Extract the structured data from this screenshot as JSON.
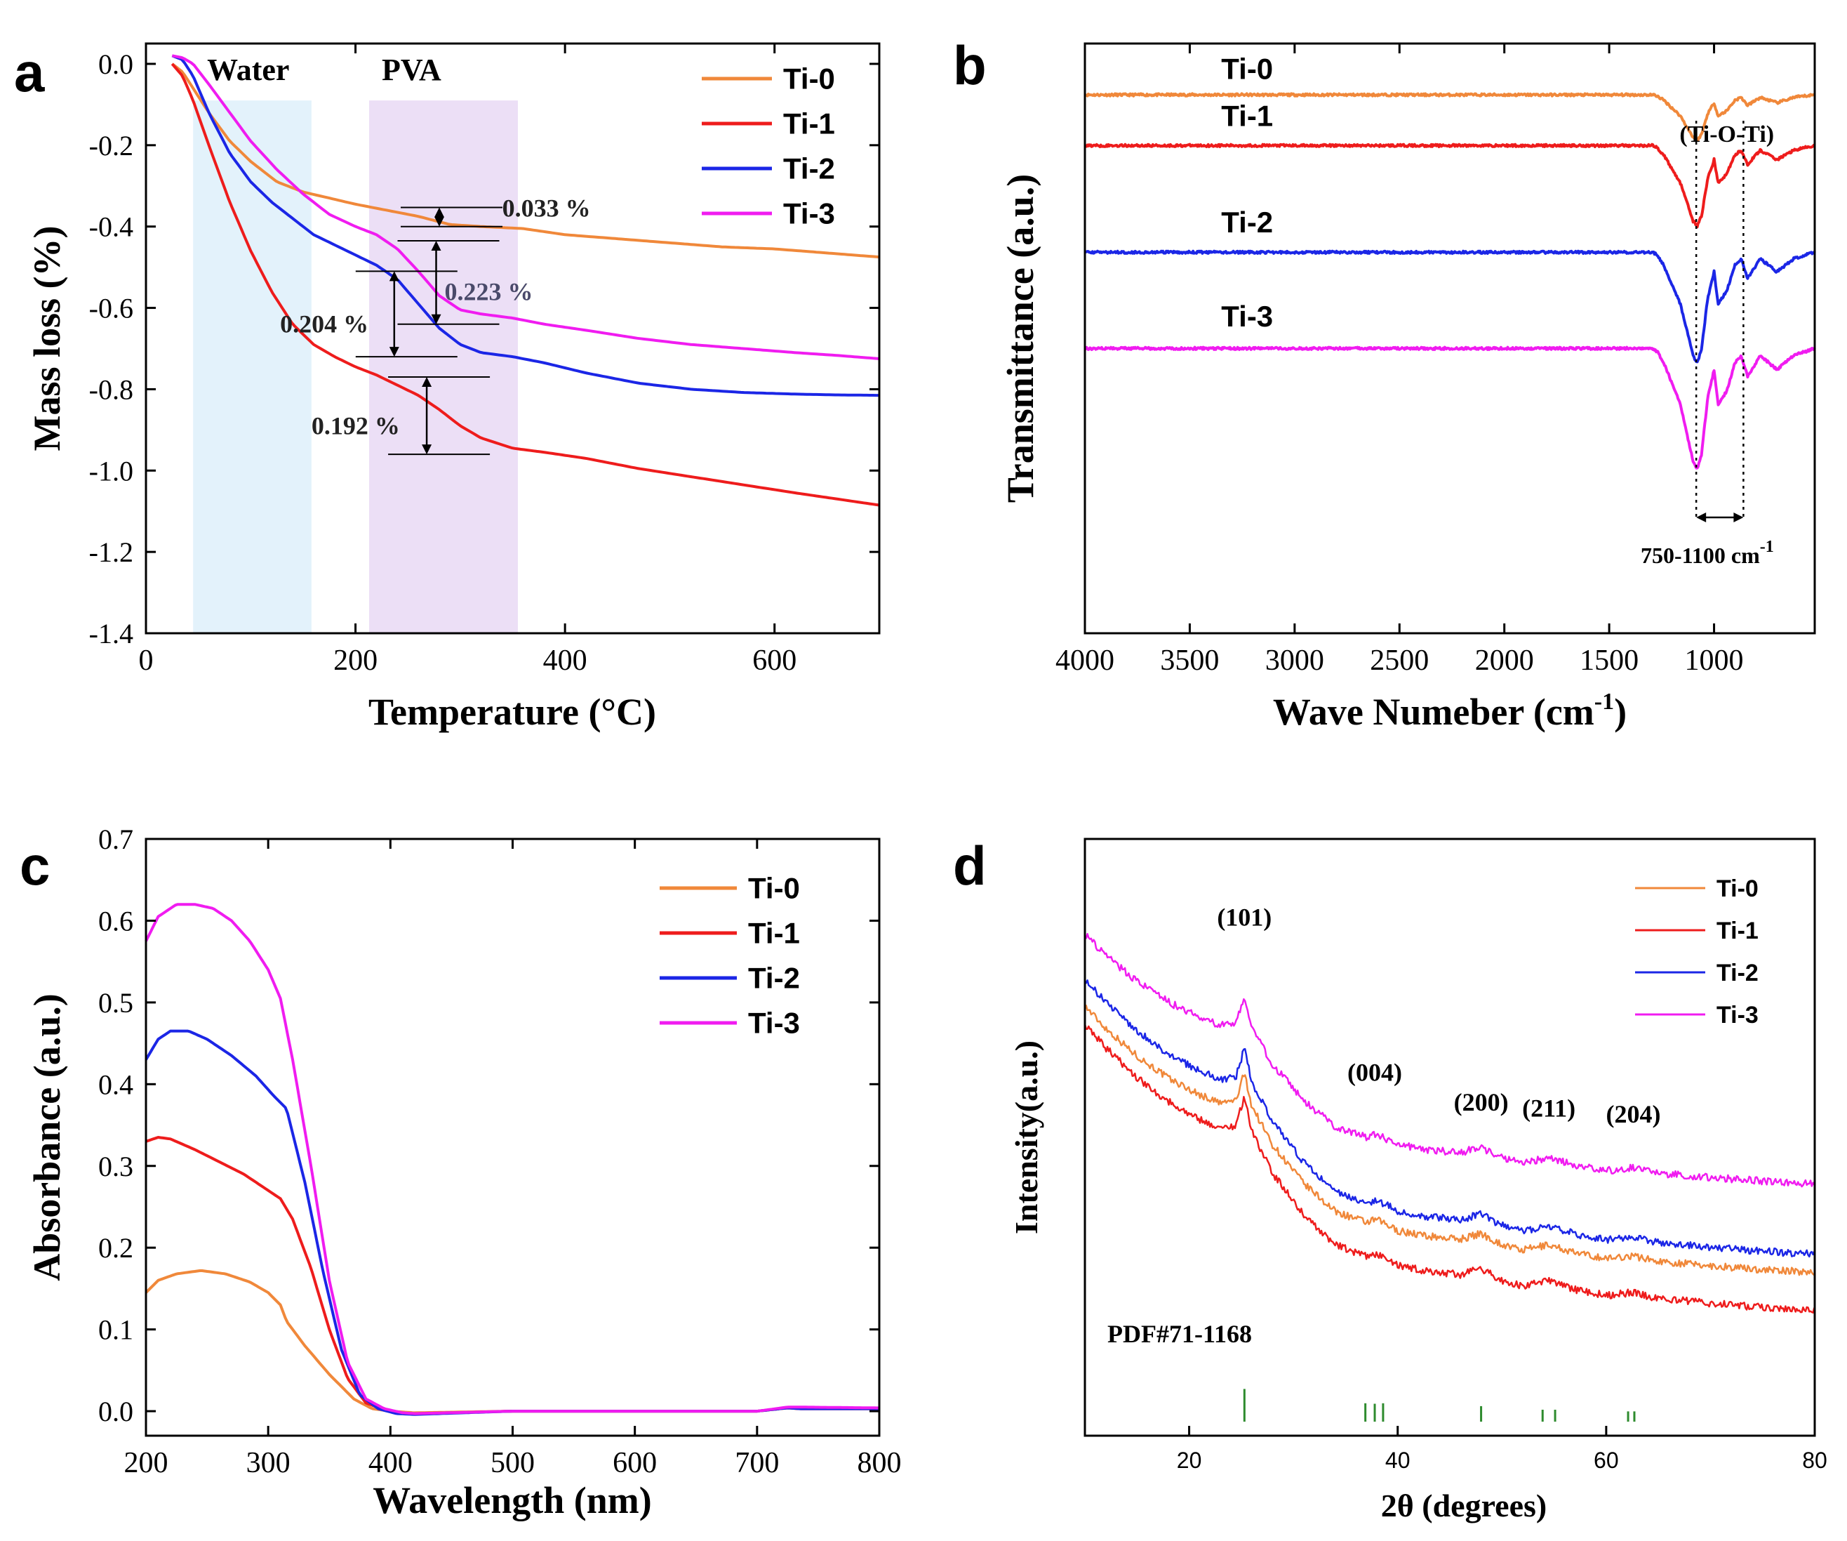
{
  "figure": {
    "panel_labels": [
      "a",
      "b",
      "c",
      "d"
    ]
  },
  "colors": {
    "Ti-0": "#F0883A",
    "Ti-1": "#EE1C1C",
    "Ti-2": "#1B26E6",
    "Ti-3": "#F01CF0",
    "water_band": "#E3F2FB",
    "pva_band": "#ECDFF6",
    "ref_bars": "#2E8B2E"
  },
  "chart_data": [
    {
      "panel": "a",
      "type": "line",
      "xlabel": "Temperature (°C)",
      "ylabel": "Mass loss (%)",
      "xlim": [
        0,
        700
      ],
      "ylim": [
        -1.4,
        0.05
      ],
      "xticks": [
        0,
        200,
        400,
        600
      ],
      "yticks": [
        0.0,
        -0.2,
        -0.4,
        -0.6,
        -0.8,
        -1.0,
        -1.2,
        -1.4
      ],
      "ytick_labels": [
        "0.0",
        "-0.2",
        "-0.4",
        "-0.6",
        "-0.8",
        "-1.0",
        "-1.2",
        "-1.4"
      ],
      "bands": [
        {
          "label": "Water",
          "x0": 45,
          "x1": 158
        },
        {
          "label": "PVA",
          "x0": 213,
          "x1": 355
        }
      ],
      "annotations": [
        {
          "text": "0.033 %",
          "x": 280,
          "y1": -0.353,
          "y2": -0.4,
          "tx": 340,
          "ty": -0.355
        },
        {
          "text": "0.223 %",
          "x": 277,
          "y1": -0.435,
          "y2": -0.64,
          "tx": 285,
          "ty": -0.56
        },
        {
          "text": "0.204 %",
          "x": 237,
          "y1": -0.51,
          "y2": -0.72,
          "tx": 128,
          "ty": -0.64
        },
        {
          "text": "0.192 %",
          "x": 268,
          "y1": -0.77,
          "y2": -0.96,
          "tx": 158,
          "ty": -0.89
        }
      ],
      "series": [
        {
          "name": "Ti-0",
          "x": [
            25,
            35,
            45,
            60,
            80,
            100,
            125,
            150,
            175,
            200,
            230,
            260,
            290,
            320,
            360,
            400,
            450,
            500,
            550,
            600,
            650,
            700
          ],
          "y": [
            0.0,
            -0.02,
            -0.06,
            -0.12,
            -0.19,
            -0.24,
            -0.29,
            -0.315,
            -0.33,
            -0.345,
            -0.36,
            -0.375,
            -0.395,
            -0.4,
            -0.405,
            -0.42,
            -0.43,
            -0.44,
            -0.45,
            -0.455,
            -0.465,
            -0.475
          ]
        },
        {
          "name": "Ti-1",
          "x": [
            25,
            35,
            45,
            60,
            80,
            100,
            120,
            140,
            160,
            180,
            200,
            220,
            240,
            260,
            280,
            300,
            320,
            350,
            380,
            420,
            470,
            520,
            570,
            620,
            660,
            700
          ],
          "y": [
            0.0,
            -0.03,
            -0.09,
            -0.2,
            -0.34,
            -0.46,
            -0.56,
            -0.64,
            -0.69,
            -0.72,
            -0.745,
            -0.765,
            -0.79,
            -0.815,
            -0.85,
            -0.89,
            -0.92,
            -0.945,
            -0.955,
            -0.97,
            -0.995,
            -1.015,
            -1.035,
            -1.055,
            -1.07,
            -1.085
          ]
        },
        {
          "name": "Ti-2",
          "x": [
            25,
            35,
            45,
            60,
            80,
            100,
            120,
            140,
            160,
            180,
            200,
            220,
            240,
            260,
            280,
            300,
            320,
            350,
            380,
            420,
            470,
            520,
            570,
            620,
            660,
            700
          ],
          "y": [
            0.02,
            0.01,
            -0.03,
            -0.12,
            -0.22,
            -0.29,
            -0.34,
            -0.38,
            -0.42,
            -0.445,
            -0.47,
            -0.495,
            -0.53,
            -0.59,
            -0.65,
            -0.69,
            -0.71,
            -0.72,
            -0.735,
            -0.76,
            -0.785,
            -0.8,
            -0.808,
            -0.812,
            -0.814,
            -0.815
          ]
        },
        {
          "name": "Ti-3",
          "x": [
            25,
            35,
            45,
            60,
            80,
            100,
            125,
            150,
            175,
            200,
            220,
            240,
            260,
            280,
            300,
            320,
            350,
            380,
            420,
            470,
            520,
            570,
            620,
            660,
            700
          ],
          "y": [
            0.02,
            0.015,
            0.0,
            -0.05,
            -0.12,
            -0.19,
            -0.26,
            -0.32,
            -0.37,
            -0.4,
            -0.42,
            -0.455,
            -0.51,
            -0.57,
            -0.605,
            -0.615,
            -0.625,
            -0.64,
            -0.655,
            -0.675,
            -0.69,
            -0.7,
            -0.71,
            -0.717,
            -0.725
          ]
        }
      ]
    },
    {
      "panel": "b",
      "type": "line",
      "xlabel": "Wave Numeber (cm",
      "xlabel_sup": "-1",
      "xlabel_tail": ")",
      "ylabel": "Transmittance (a.u.)",
      "xlim": [
        4000,
        520
      ],
      "ylim": [
        0,
        1
      ],
      "xticks": [
        4000,
        3500,
        3000,
        2500,
        2000,
        1500,
        1000
      ],
      "labels": [
        "Ti-0",
        "Ti-1",
        "Ti-2",
        "Ti-3"
      ],
      "label_positions": [
        {
          "x": 3350,
          "y": 0.94
        },
        {
          "x": 3350,
          "y": 0.86
        },
        {
          "x": 3350,
          "y": 0.68
        },
        {
          "x": 3350,
          "y": 0.52
        }
      ],
      "annotation_top": "(Ti-O-Ti)",
      "annotation_bottom": "750-1100 cm",
      "annotation_bottom_sup": "-1",
      "dotted_lines_x": [
        1085,
        860
      ],
      "series": [
        {
          "name": "Ti-0",
          "baseline": 0.913,
          "dip_scale": 0.45
        },
        {
          "name": "Ti-1",
          "baseline": 0.827,
          "dip_scale": 0.8
        },
        {
          "name": "Ti-2",
          "baseline": 0.646,
          "dip_scale": 1.1
        },
        {
          "name": "Ti-3",
          "baseline": 0.483,
          "dip_scale": 1.2
        }
      ],
      "peak_profile": {
        "x": [
          520,
          620,
          700,
          780,
          840,
          870,
          900,
          940,
          980,
          1000,
          1030,
          1060,
          1080,
          1100,
          1130,
          1160,
          1200,
          1240,
          1270,
          1290,
          1320,
          4000
        ],
        "dy": [
          0.0,
          -0.01,
          -0.03,
          -0.01,
          -0.04,
          -0.01,
          -0.02,
          -0.06,
          -0.08,
          -0.03,
          -0.07,
          -0.15,
          -0.17,
          -0.16,
          -0.12,
          -0.08,
          -0.05,
          -0.02,
          -0.005,
          0.0,
          0.0,
          0.0
        ]
      }
    },
    {
      "panel": "c",
      "type": "line",
      "xlabel": "Wavelength (nm)",
      "ylabel": "Absorbance (a.u.)",
      "xlim": [
        200,
        800
      ],
      "ylim": [
        -0.03,
        0.7
      ],
      "xticks": [
        200,
        300,
        400,
        500,
        600,
        700,
        800
      ],
      "yticks": [
        0.0,
        0.1,
        0.2,
        0.3,
        0.4,
        0.5,
        0.6,
        0.7
      ],
      "ytick_labels": [
        "0.0",
        "0.1",
        "0.2",
        "0.3",
        "0.4",
        "0.5",
        "0.6",
        "0.7"
      ],
      "series": [
        {
          "name": "Ti-0",
          "x": [
            200,
            210,
            225,
            245,
            265,
            285,
            300,
            310,
            315,
            330,
            350,
            370,
            385,
            400,
            420,
            500,
            600,
            700,
            725,
            735,
            800
          ],
          "y": [
            0.145,
            0.16,
            0.168,
            0.172,
            0.168,
            0.158,
            0.145,
            0.13,
            0.11,
            0.08,
            0.045,
            0.015,
            0.003,
            0.0,
            -0.002,
            0.0,
            0.0,
            0.0,
            0.004,
            0.003,
            0.003
          ]
        },
        {
          "name": "Ti-1",
          "x": [
            200,
            210,
            220,
            240,
            260,
            280,
            300,
            310,
            320,
            335,
            350,
            365,
            380,
            395,
            410,
            420,
            500,
            600,
            700,
            725,
            735,
            800
          ],
          "y": [
            0.33,
            0.335,
            0.333,
            0.32,
            0.305,
            0.29,
            0.27,
            0.26,
            0.235,
            0.175,
            0.1,
            0.04,
            0.01,
            0.002,
            -0.003,
            -0.003,
            0.0,
            0.0,
            0.0,
            0.004,
            0.003,
            0.003
          ]
        },
        {
          "name": "Ti-2",
          "x": [
            200,
            210,
            220,
            235,
            250,
            270,
            290,
            305,
            315,
            330,
            345,
            360,
            375,
            390,
            405,
            420,
            500,
            600,
            700,
            725,
            735,
            800
          ],
          "y": [
            0.43,
            0.455,
            0.465,
            0.465,
            0.455,
            0.435,
            0.41,
            0.385,
            0.37,
            0.28,
            0.17,
            0.075,
            0.02,
            0.003,
            -0.003,
            -0.004,
            0.0,
            0.0,
            0.0,
            0.004,
            0.003,
            0.003
          ]
        },
        {
          "name": "Ti-3",
          "x": [
            200,
            210,
            225,
            240,
            255,
            270,
            285,
            300,
            310,
            320,
            335,
            350,
            365,
            380,
            395,
            410,
            420,
            500,
            600,
            700,
            725,
            735,
            800
          ],
          "y": [
            0.575,
            0.605,
            0.62,
            0.62,
            0.615,
            0.6,
            0.575,
            0.54,
            0.505,
            0.43,
            0.3,
            0.16,
            0.06,
            0.015,
            0.003,
            -0.002,
            -0.003,
            0.0,
            0.0,
            0.0,
            0.005,
            0.005,
            0.004
          ]
        }
      ]
    },
    {
      "panel": "d",
      "type": "line",
      "xlabel": "2θ (degrees)",
      "ylabel": "Intensity(a.u.)",
      "xlim": [
        10,
        80
      ],
      "ylim": [
        0,
        1
      ],
      "xticks": [
        20,
        40,
        60,
        80
      ],
      "peak_labels": [
        {
          "text": "(101)",
          "x": 25.3,
          "y": 0.855
        },
        {
          "text": "(004)",
          "x": 37.8,
          "y": 0.595
        },
        {
          "text": "(200)",
          "x": 48.0,
          "y": 0.545
        },
        {
          "text": "(211)",
          "x": 54.5,
          "y": 0.535
        },
        {
          "text": "(204)",
          "x": 62.6,
          "y": 0.525
        }
      ],
      "reference_label": "PDF#71-1168",
      "reference_bars": {
        "x": [
          25.3,
          36.9,
          37.8,
          38.6,
          48.0,
          53.9,
          55.1,
          62.1,
          62.7
        ],
        "h": [
          0.137,
          0.077,
          0.075,
          0.077,
          0.065,
          0.05,
          0.05,
          0.043,
          0.043
        ]
      },
      "profile": {
        "x": [
          10,
          12,
          15,
          18,
          21,
          23,
          24.5,
          25.3,
          26,
          28,
          31,
          34,
          37,
          38,
          40,
          43,
          46,
          48,
          50,
          52,
          54.5,
          57,
          60,
          62.5,
          65,
          70,
          75,
          80
        ],
        "dy": [
          0.0,
          -0.04,
          -0.09,
          -0.13,
          -0.16,
          -0.175,
          -0.17,
          -0.12,
          -0.18,
          -0.25,
          -0.32,
          -0.37,
          -0.39,
          -0.385,
          -0.405,
          -0.415,
          -0.42,
          -0.41,
          -0.43,
          -0.44,
          -0.43,
          -0.445,
          -0.455,
          -0.45,
          -0.46,
          -0.468,
          -0.475,
          -0.48
        ]
      },
      "series": [
        {
          "name": "Ti-0",
          "start": 0.72,
          "scale": 0.93
        },
        {
          "name": "Ti-1",
          "start": 0.69,
          "scale": 1.0
        },
        {
          "name": "Ti-2",
          "start": 0.765,
          "scale": 0.96
        },
        {
          "name": "Ti-3",
          "start": 0.84,
          "scale": 0.87
        }
      ]
    }
  ]
}
